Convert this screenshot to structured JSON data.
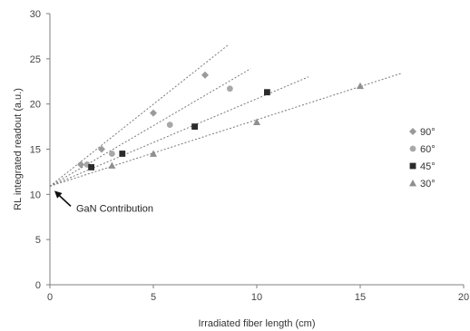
{
  "chart_data": {
    "type": "scatter",
    "title": "",
    "xlabel": "Irradiated fiber length (cm)",
    "ylabel": "RL integrated readout (a.u.)",
    "xlim": [
      0,
      20
    ],
    "ylim": [
      0,
      30
    ],
    "x_ticks": [
      "0",
      "5",
      "10",
      "15",
      "20"
    ],
    "y_ticks": [
      "0",
      "5",
      "10",
      "15",
      "20",
      "25",
      "30"
    ],
    "grid": false,
    "legend_position": "right",
    "series": [
      {
        "name": "90°",
        "marker": "diamond",
        "color": "#9a9a9a",
        "points": [
          [
            1.5,
            13.3
          ],
          [
            2.5,
            15.0
          ],
          [
            5.0,
            19.0
          ],
          [
            7.5,
            23.2
          ]
        ],
        "trendline": [
          [
            0,
            10.9
          ],
          [
            8.6,
            26.5
          ]
        ]
      },
      {
        "name": "60°",
        "marker": "circle",
        "color": "#a8a8a8",
        "points": [
          [
            1.8,
            13.3
          ],
          [
            3.0,
            14.5
          ],
          [
            5.8,
            17.7
          ],
          [
            8.7,
            21.7
          ]
        ],
        "trendline": [
          [
            0,
            10.9
          ],
          [
            9.7,
            23.9
          ]
        ]
      },
      {
        "name": "45°",
        "marker": "square",
        "color": "#2b2b2b",
        "points": [
          [
            2.0,
            13.0
          ],
          [
            3.5,
            14.5
          ],
          [
            7.0,
            17.5
          ],
          [
            10.5,
            21.3
          ]
        ],
        "trendline": [
          [
            0,
            10.9
          ],
          [
            12.5,
            23.0
          ]
        ]
      },
      {
        "name": "30°",
        "marker": "triangle",
        "color": "#8f8f8f",
        "points": [
          [
            3.0,
            13.2
          ],
          [
            5.0,
            14.5
          ],
          [
            10.0,
            18.0
          ],
          [
            15.0,
            22.0
          ]
        ],
        "trendline": [
          [
            0,
            10.9
          ],
          [
            17.0,
            23.4
          ]
        ]
      }
    ],
    "annotation": {
      "text": "GaN Contribution",
      "points_to": [
        0,
        10.9
      ]
    }
  }
}
